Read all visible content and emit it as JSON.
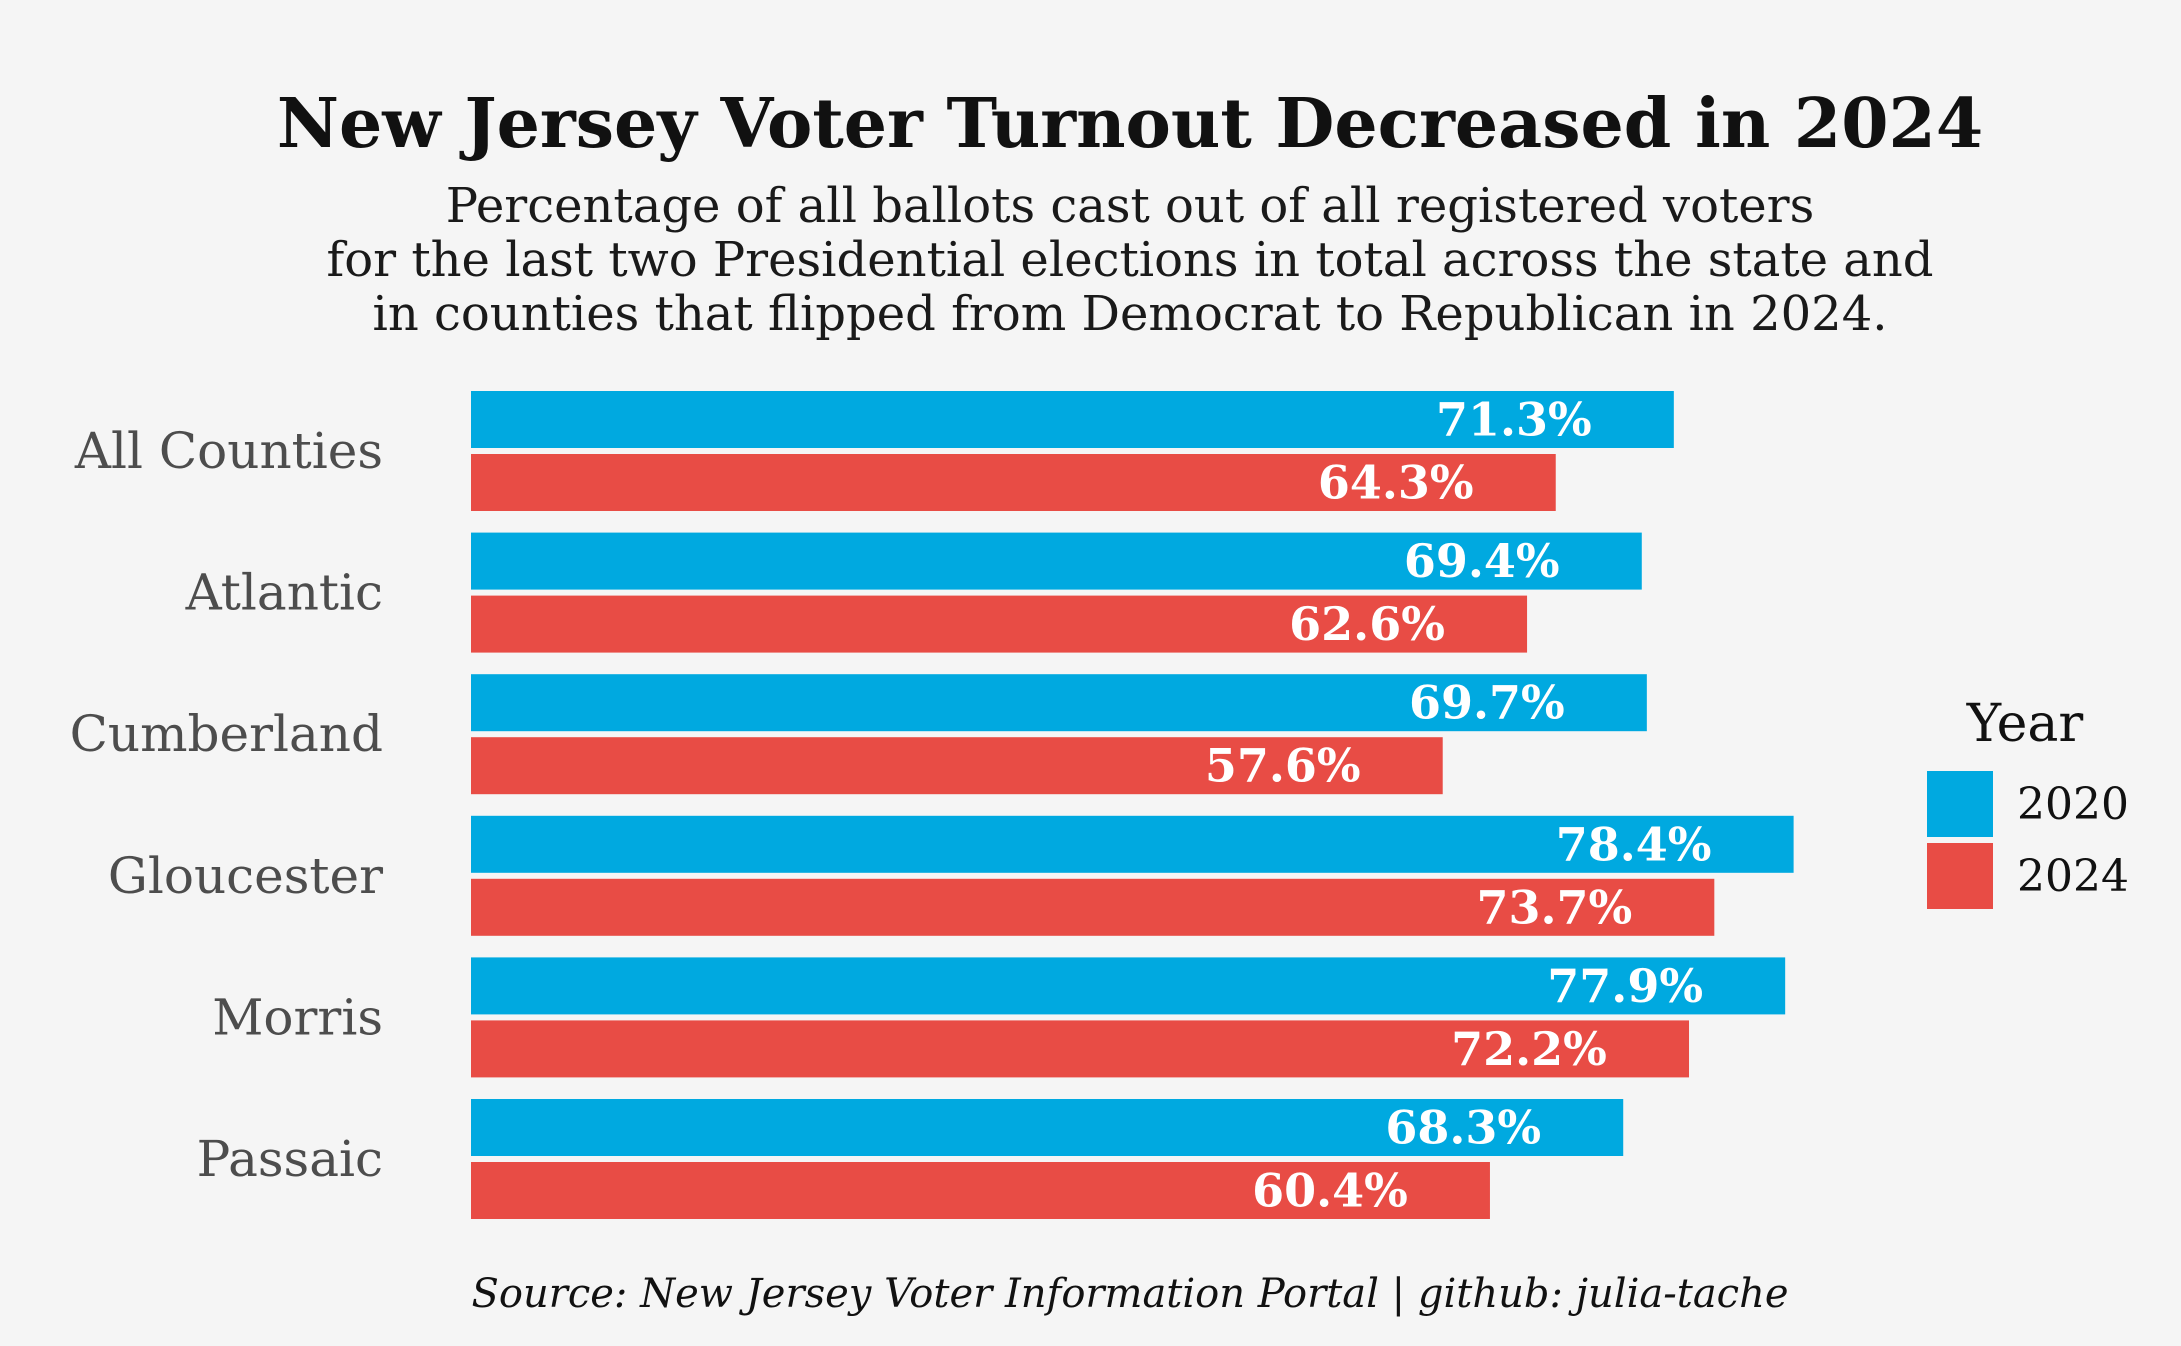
{
  "chart_data": {
    "type": "bar",
    "orientation": "horizontal",
    "title": "New Jersey Voter Turnout Decreased in 2024",
    "subtitle_lines": [
      "Percentage of all ballots cast out of all registered voters",
      "for the last two Presidential elections in total across the state and",
      "in counties that flipped from Democrat to Republican in 2024."
    ],
    "categories": [
      "All Counties",
      "Atlantic",
      "Cumberland",
      "Gloucester",
      "Morris",
      "Passaic"
    ],
    "series": [
      {
        "name": "2020",
        "color": "#00a9e0",
        "values": [
          71.3,
          69.4,
          69.7,
          78.4,
          77.9,
          68.3
        ]
      },
      {
        "name": "2024",
        "color": "#e84c45",
        "values": [
          64.3,
          62.6,
          57.6,
          73.7,
          72.2,
          60.4
        ]
      }
    ],
    "value_suffix": "%",
    "xlim": [
      0,
      85
    ],
    "grid": false,
    "legend": {
      "title": "Year",
      "position": "right"
    },
    "source": "Source: New Jersey Voter Information Portal | github: julia-tache"
  }
}
